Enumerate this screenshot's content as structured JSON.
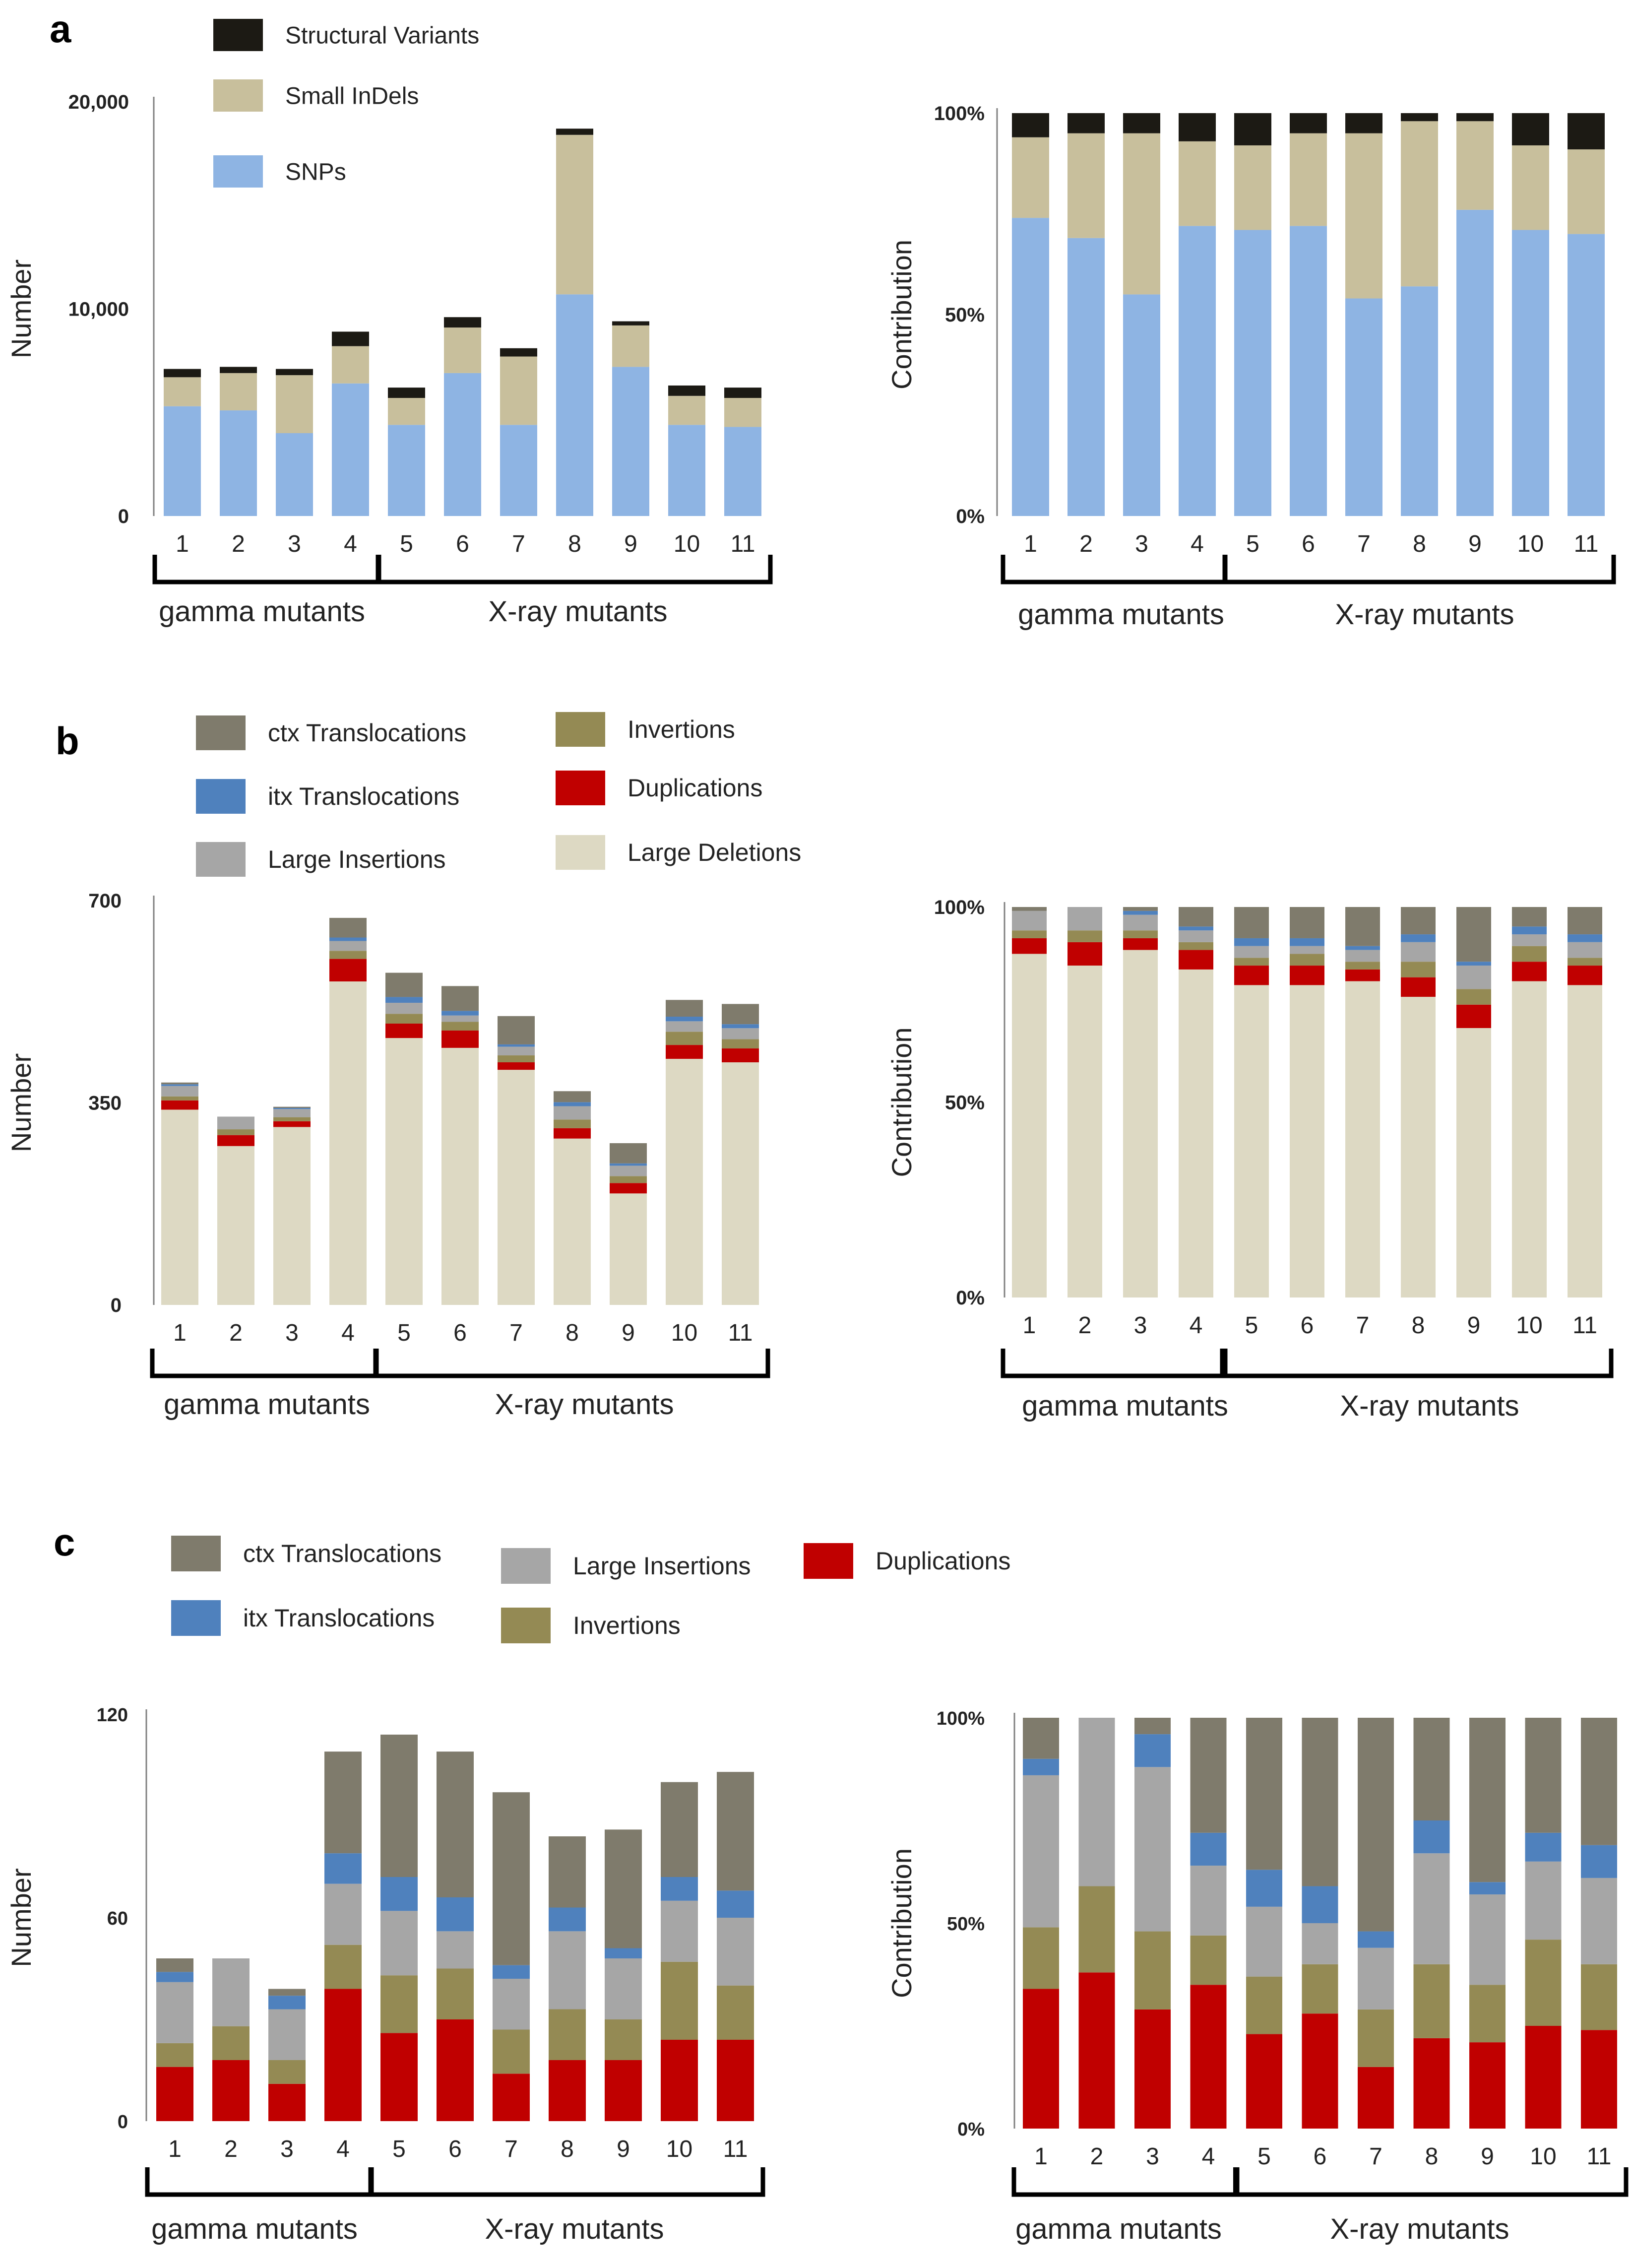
{
  "colors": {
    "sv": "#1c1a14",
    "indel": "#c8bf9c",
    "snp": "#8eb4e3",
    "ctx": "#7f7b6c",
    "itx": "#4f81bd",
    "ins": "#a6a6a6",
    "inv": "#948a54",
    "dup": "#c00000",
    "del": "#ddd9c3",
    "axis": "#808080",
    "bracket": "#000000"
  },
  "groups": {
    "gamma": "gamma mutants",
    "xray": "X-ray mutants"
  },
  "chart_data": [
    {
      "panel": "a",
      "id": "a-left",
      "type": "bar",
      "stacked": true,
      "categories": [
        "1",
        "2",
        "3",
        "4",
        "5",
        "6",
        "7",
        "8",
        "9",
        "10",
        "11"
      ],
      "ylabel": "Number",
      "ylim": [
        0,
        20000
      ],
      "yticks": [
        0,
        10000,
        20000
      ],
      "ytick_labels": [
        "0",
        "10,000",
        "20,000"
      ],
      "series": [
        {
          "name": "SNPs",
          "key": "snp",
          "values": [
            5300,
            5100,
            4000,
            6400,
            4400,
            6900,
            4400,
            10700,
            7200,
            4400,
            4300
          ]
        },
        {
          "name": "Small InDels",
          "key": "indel",
          "values": [
            1400,
            1800,
            2800,
            1800,
            1300,
            2200,
            3300,
            7700,
            2000,
            1400,
            1400
          ]
        },
        {
          "name": "Structural Variants",
          "key": "sv",
          "values": [
            400,
            300,
            300,
            700,
            500,
            500,
            400,
            300,
            200,
            500,
            500
          ]
        }
      ]
    },
    {
      "panel": "a",
      "id": "a-right",
      "type": "bar",
      "stacked": true,
      "percent": true,
      "categories": [
        "1",
        "2",
        "3",
        "4",
        "5",
        "6",
        "7",
        "8",
        "9",
        "10",
        "11"
      ],
      "ylabel": "Contribution",
      "ylim": [
        0,
        100
      ],
      "yticks": [
        0,
        50,
        100
      ],
      "ytick_labels": [
        "0%",
        "50%",
        "100%"
      ],
      "series": [
        {
          "name": "SNPs",
          "key": "snp",
          "values": [
            74,
            69,
            55,
            72,
            71,
            72,
            54,
            57,
            76,
            71,
            70
          ]
        },
        {
          "name": "Small InDels",
          "key": "indel",
          "values": [
            20,
            26,
            40,
            21,
            21,
            23,
            41,
            41,
            22,
            21,
            21
          ]
        },
        {
          "name": "Structural Variants",
          "key": "sv",
          "values": [
            6,
            5,
            5,
            7,
            8,
            5,
            5,
            2,
            2,
            8,
            9
          ]
        }
      ]
    },
    {
      "panel": "b",
      "id": "b-left",
      "type": "bar",
      "stacked": true,
      "categories": [
        "1",
        "2",
        "3",
        "4",
        "5",
        "6",
        "7",
        "8",
        "9",
        "10",
        "11"
      ],
      "ylabel": "Number",
      "ylim": [
        0,
        700
      ],
      "yticks": [
        0,
        350,
        700
      ],
      "ytick_labels": [
        "0",
        "350",
        "700"
      ],
      "series": [
        {
          "name": "Large Deletions",
          "key": "del",
          "values": [
            338,
            275,
            308,
            560,
            462,
            445,
            407,
            288,
            193,
            426,
            420
          ]
        },
        {
          "name": "Duplications",
          "key": "dup",
          "values": [
            16,
            19,
            10,
            39,
            25,
            30,
            13,
            18,
            18,
            24,
            24
          ]
        },
        {
          "name": "Invertions",
          "key": "inv",
          "values": [
            7,
            10,
            7,
            14,
            17,
            15,
            12,
            15,
            12,
            23,
            16
          ]
        },
        {
          "name": "Large Insertions",
          "key": "ins",
          "values": [
            18,
            22,
            14,
            17,
            19,
            11,
            15,
            23,
            18,
            18,
            19
          ]
        },
        {
          "name": "itx Translocations",
          "key": "itx",
          "values": [
            3,
            0,
            2,
            6,
            10,
            8,
            4,
            7,
            4,
            8,
            7
          ]
        },
        {
          "name": "ctx Translocations",
          "key": "ctx",
          "values": [
            3,
            0,
            2,
            34,
            42,
            43,
            49,
            19,
            35,
            29,
            35
          ]
        }
      ]
    },
    {
      "panel": "b",
      "id": "b-right",
      "type": "bar",
      "stacked": true,
      "percent": true,
      "categories": [
        "1",
        "2",
        "3",
        "4",
        "5",
        "6",
        "7",
        "8",
        "9",
        "10",
        "11"
      ],
      "ylabel": "Contribution",
      "ylim": [
        0,
        100
      ],
      "yticks": [
        0,
        50,
        100
      ],
      "ytick_labels": [
        "0%",
        "50%",
        "100%"
      ],
      "series": [
        {
          "name": "Large Deletions",
          "key": "del",
          "values": [
            88,
            85,
            89,
            84,
            80,
            80,
            81,
            77,
            69,
            81,
            80
          ]
        },
        {
          "name": "Duplications",
          "key": "dup",
          "values": [
            4,
            6,
            3,
            5,
            5,
            5,
            3,
            5,
            6,
            5,
            5
          ]
        },
        {
          "name": "Invertions",
          "key": "inv",
          "values": [
            2,
            3,
            2,
            2,
            2,
            3,
            2,
            4,
            4,
            4,
            2
          ]
        },
        {
          "name": "Large Insertions",
          "key": "ins",
          "values": [
            5,
            6,
            4,
            3,
            3,
            2,
            3,
            5,
            6,
            3,
            4
          ]
        },
        {
          "name": "itx Translocations",
          "key": "itx",
          "values": [
            0,
            0,
            1,
            1,
            2,
            2,
            1,
            2,
            1,
            2,
            2
          ]
        },
        {
          "name": "ctx Translocations",
          "key": "ctx",
          "values": [
            1,
            0,
            1,
            5,
            8,
            8,
            10,
            7,
            14,
            5,
            7
          ]
        }
      ]
    },
    {
      "panel": "c",
      "id": "c-left",
      "type": "bar",
      "stacked": true,
      "categories": [
        "1",
        "2",
        "3",
        "4",
        "5",
        "6",
        "7",
        "8",
        "9",
        "10",
        "11"
      ],
      "ylabel": "Number",
      "ylim": [
        0,
        120
      ],
      "yticks": [
        0,
        60,
        120
      ],
      "ytick_labels": [
        "0",
        "60",
        "120"
      ],
      "series": [
        {
          "name": "Duplications",
          "key": "dup",
          "values": [
            16,
            18,
            11,
            39,
            26,
            30,
            14,
            18,
            18,
            24,
            24
          ]
        },
        {
          "name": "Invertions",
          "key": "inv",
          "values": [
            7,
            10,
            7,
            13,
            17,
            15,
            13,
            15,
            12,
            23,
            16
          ]
        },
        {
          "name": "Large Insertions",
          "key": "ins",
          "values": [
            18,
            20,
            15,
            18,
            19,
            11,
            15,
            23,
            18,
            18,
            20
          ]
        },
        {
          "name": "itx Translocations",
          "key": "itx",
          "values": [
            3,
            0,
            4,
            9,
            10,
            10,
            4,
            7,
            3,
            7,
            8
          ]
        },
        {
          "name": "ctx Translocations",
          "key": "ctx",
          "values": [
            4,
            0,
            2,
            30,
            42,
            43,
            51,
            21,
            35,
            28,
            35
          ]
        }
      ]
    },
    {
      "panel": "c",
      "id": "c-right",
      "type": "bar",
      "stacked": true,
      "percent": true,
      "categories": [
        "1",
        "2",
        "3",
        "4",
        "5",
        "6",
        "7",
        "8",
        "9",
        "10",
        "11"
      ],
      "ylabel": "Contribution",
      "ylim": [
        0,
        100
      ],
      "yticks": [
        0,
        50,
        100
      ],
      "ytick_labels": [
        "0%",
        "50%",
        "100%"
      ],
      "series": [
        {
          "name": "Duplications",
          "key": "dup",
          "values": [
            34,
            38,
            29,
            35,
            23,
            28,
            15,
            22,
            21,
            25,
            24
          ]
        },
        {
          "name": "Invertions",
          "key": "inv",
          "values": [
            15,
            21,
            19,
            12,
            14,
            12,
            14,
            18,
            14,
            21,
            16
          ]
        },
        {
          "name": "Large Insertions",
          "key": "ins",
          "values": [
            37,
            41,
            40,
            17,
            17,
            10,
            15,
            27,
            22,
            19,
            21
          ]
        },
        {
          "name": "itx Translocations",
          "key": "itx",
          "values": [
            4,
            0,
            8,
            8,
            9,
            9,
            4,
            8,
            3,
            7,
            8
          ]
        },
        {
          "name": "ctx Translocations",
          "key": "ctx",
          "values": [
            10,
            0,
            4,
            28,
            37,
            41,
            52,
            25,
            40,
            28,
            31
          ]
        }
      ]
    }
  ],
  "legends": {
    "a": [
      {
        "name": "Structural Variants",
        "key": "sv"
      },
      {
        "name": "Small InDels",
        "key": "indel"
      },
      {
        "name": "SNPs",
        "key": "snp"
      }
    ],
    "b": [
      {
        "name": "ctx Translocations",
        "key": "ctx"
      },
      {
        "name": "itx Translocations",
        "key": "itx"
      },
      {
        "name": "Large Insertions",
        "key": "ins"
      },
      {
        "name": "Invertions",
        "key": "inv"
      },
      {
        "name": "Duplications",
        "key": "dup"
      },
      {
        "name": "Large Deletions",
        "key": "del"
      }
    ],
    "c": [
      {
        "name": "ctx Translocations",
        "key": "ctx"
      },
      {
        "name": "itx Translocations",
        "key": "itx"
      },
      {
        "name": "Large Insertions",
        "key": "ins"
      },
      {
        "name": "Invertions",
        "key": "inv"
      },
      {
        "name": "Duplications",
        "key": "dup"
      }
    ]
  }
}
